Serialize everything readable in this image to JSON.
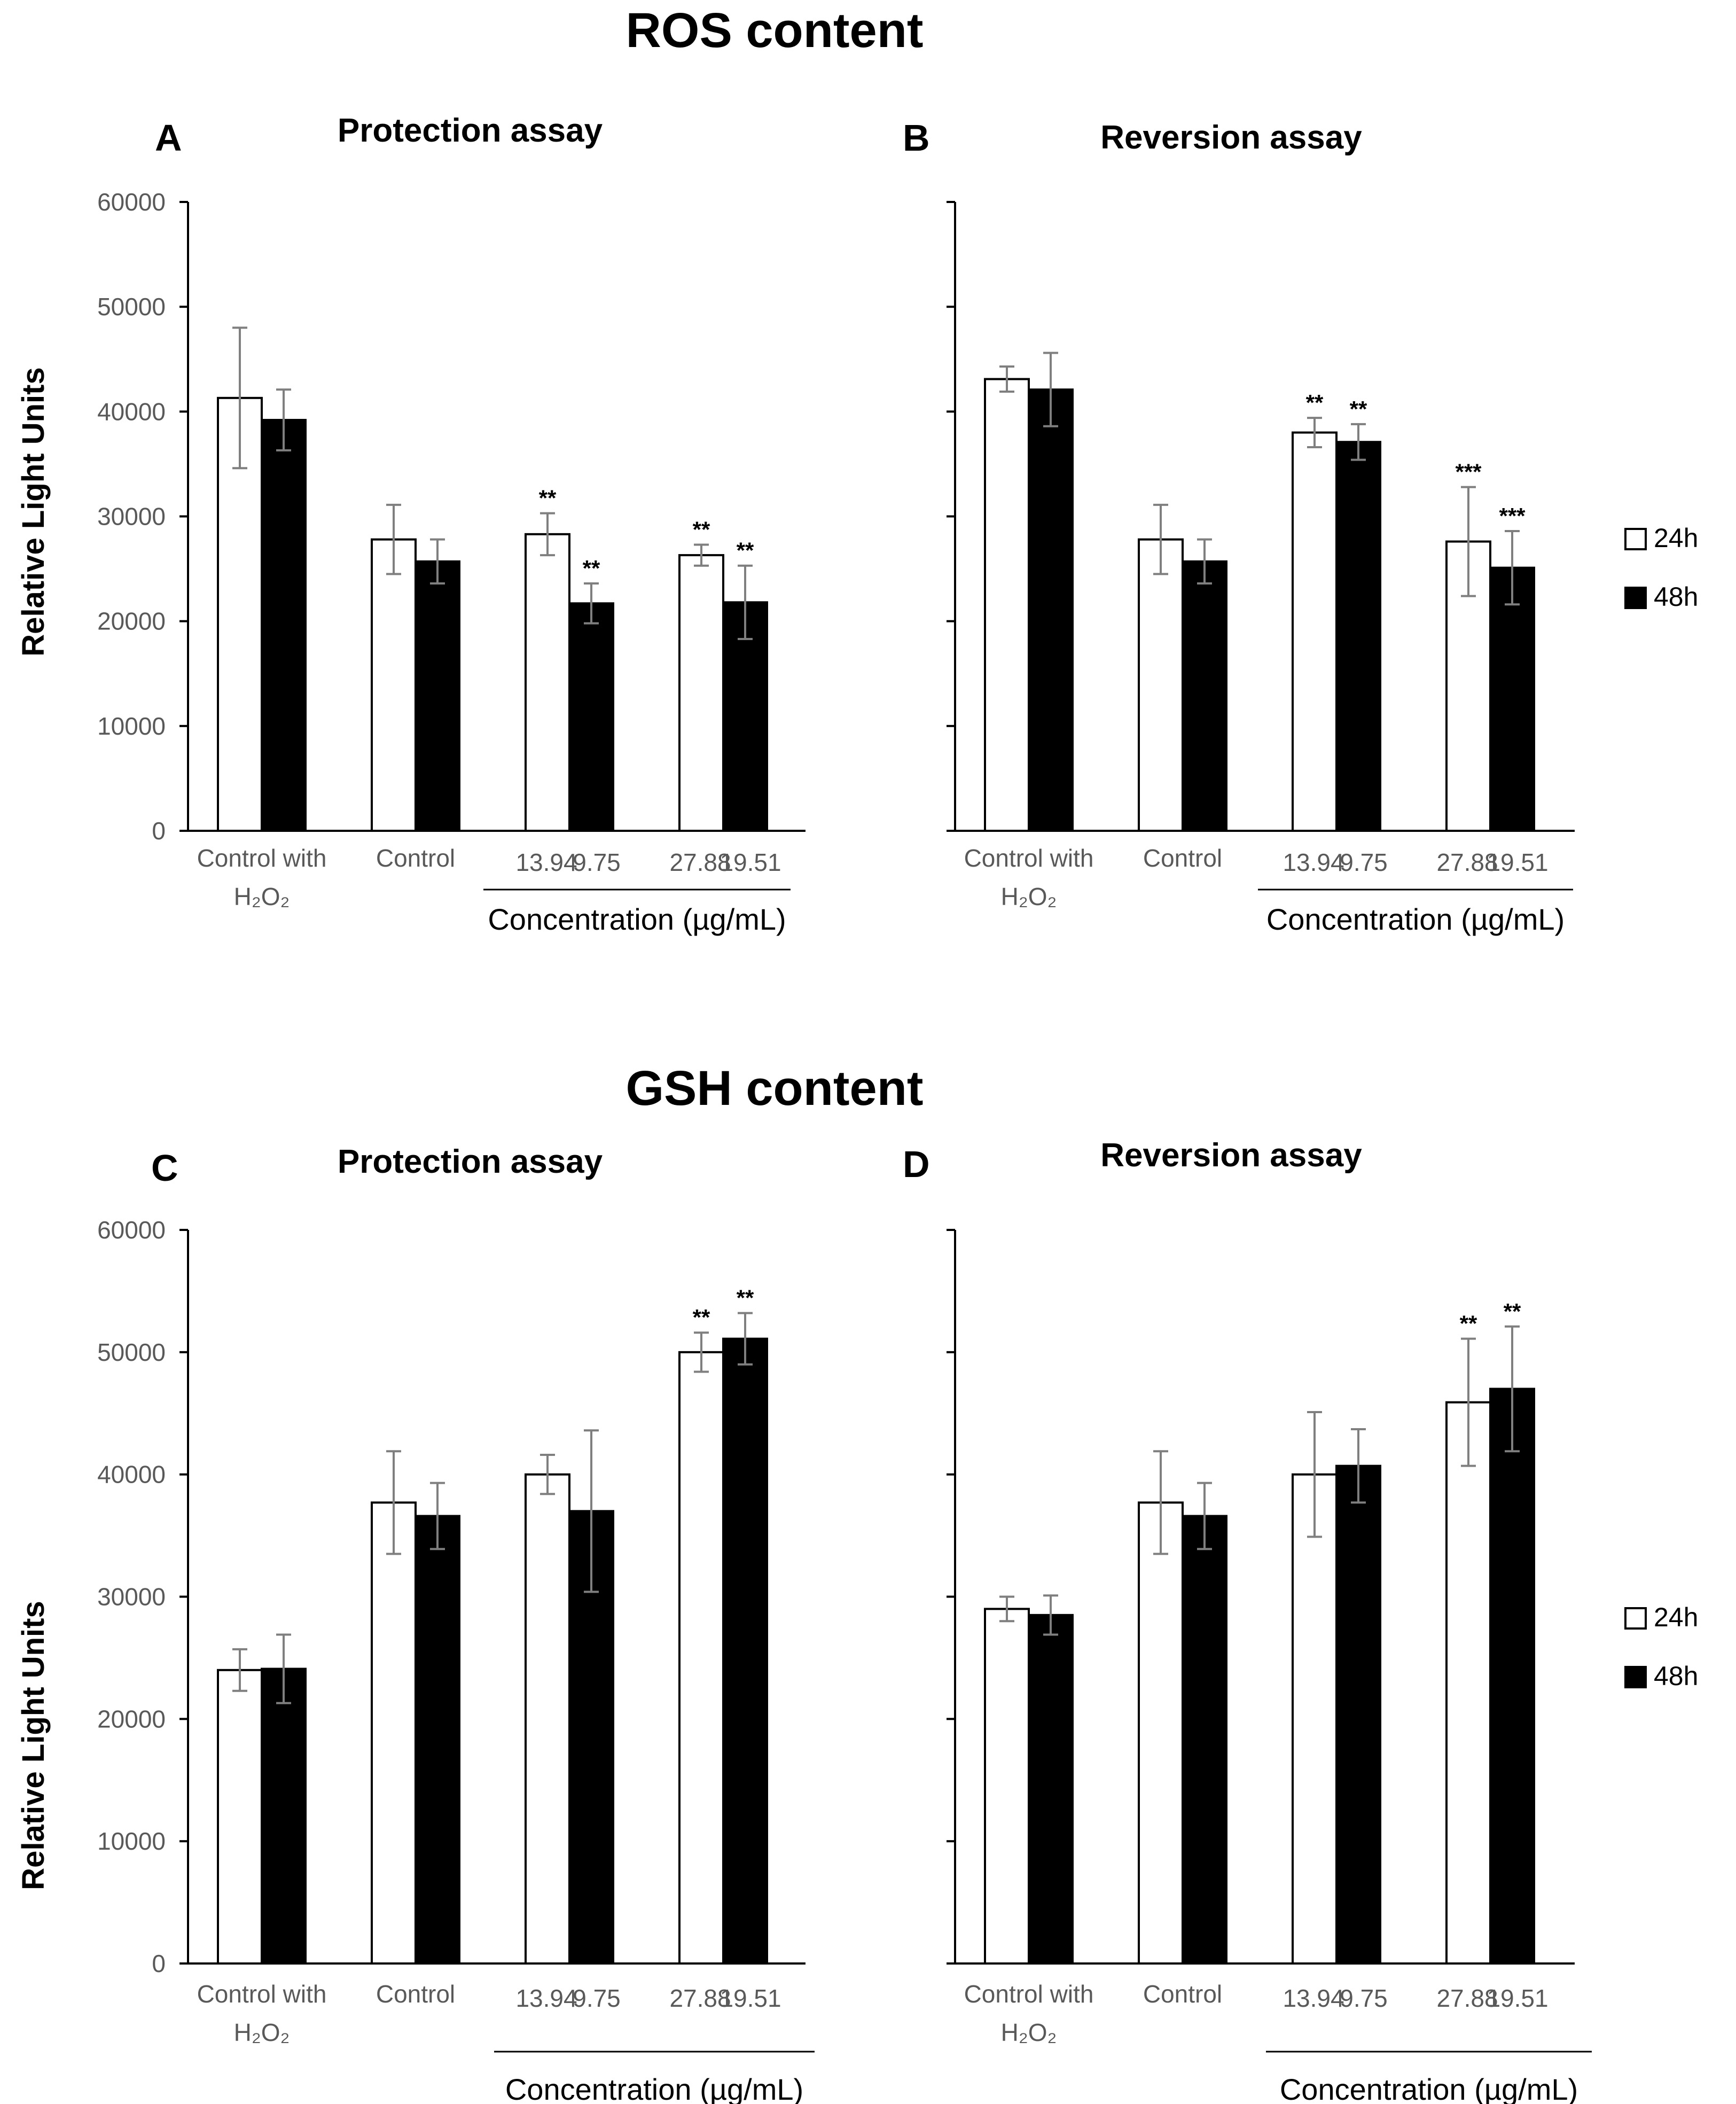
{
  "figure": {
    "sections": [
      {
        "title": "ROS content"
      },
      {
        "title": "GSH content"
      }
    ],
    "legend": [
      {
        "label": "24h",
        "color": "#ffffff"
      },
      {
        "label": "48h",
        "color": "#000000"
      }
    ]
  },
  "chart_data": [
    {
      "type": "bar",
      "panel": "A",
      "title": "Protection assay",
      "ylabel": "Relative Light Units",
      "xlabel": "Concentration (µg/mL)",
      "ylim": [
        0,
        60000
      ],
      "yticks": [
        "0",
        "10000",
        "20000",
        "30000",
        "40000",
        "50000",
        "60000"
      ],
      "groups": [
        {
          "label": "Control with H2O2",
          "label_main": "Control with",
          "label_sub": "H₂O₂"
        },
        {
          "label": "Control"
        },
        {
          "label_24h": "13.94",
          "label_48h": "9.75"
        },
        {
          "label_24h": "27.88",
          "label_48h": "19.51"
        }
      ],
      "series": [
        {
          "name": "24h",
          "values": [
            41300,
            27800,
            28300,
            26300
          ],
          "errors": [
            6700,
            3300,
            2000,
            1000
          ],
          "sig": [
            "",
            "",
            "**",
            "**"
          ]
        },
        {
          "name": "48h",
          "values": [
            39200,
            25700,
            21700,
            21800
          ],
          "errors": [
            2900,
            2100,
            1900,
            3500
          ],
          "sig": [
            "",
            "",
            "**",
            "**"
          ]
        }
      ]
    },
    {
      "type": "bar",
      "panel": "B",
      "title": "Reversion assay",
      "ylabel": "",
      "xlabel": "Concentration (µg/mL)",
      "ylim": [
        0,
        60000
      ],
      "yticks": [],
      "groups": [
        {
          "label": "Control with H2O2",
          "label_main": "Control with",
          "label_sub": "H₂O₂"
        },
        {
          "label": "Control"
        },
        {
          "label_24h": "13.94",
          "label_48h": "9.75"
        },
        {
          "label_24h": "27.88",
          "label_48h": "19.51"
        }
      ],
      "series": [
        {
          "name": "24h",
          "values": [
            43100,
            27800,
            38000,
            27600
          ],
          "errors": [
            1200,
            3300,
            1400,
            5200
          ],
          "sig": [
            "",
            "",
            "**",
            "***"
          ]
        },
        {
          "name": "48h",
          "values": [
            42100,
            25700,
            37100,
            25100
          ],
          "errors": [
            3500,
            2100,
            1700,
            3500
          ],
          "sig": [
            "",
            "",
            "**",
            "***"
          ]
        }
      ]
    },
    {
      "type": "bar",
      "panel": "C",
      "title": "Protection assay",
      "ylabel": "Relative Light Units",
      "xlabel": "Concentration (µg/mL)",
      "ylim": [
        0,
        60000
      ],
      "yticks": [
        "0",
        "10000",
        "20000",
        "30000",
        "40000",
        "50000",
        "60000"
      ],
      "groups": [
        {
          "label": "Control with H2O2",
          "label_main": "Control with",
          "label_sub": "H₂O₂"
        },
        {
          "label": "Control"
        },
        {
          "label_24h": "13.94",
          "label_48h": "9.75"
        },
        {
          "label_24h": "27.88",
          "label_48h": "19.51"
        }
      ],
      "series": [
        {
          "name": "24h",
          "values": [
            24000,
            37700,
            40000,
            50000
          ],
          "errors": [
            1700,
            4200,
            1600,
            1600
          ],
          "sig": [
            "",
            "",
            "",
            "**"
          ]
        },
        {
          "name": "48h",
          "values": [
            24100,
            36600,
            37000,
            51100
          ],
          "errors": [
            2800,
            2700,
            6600,
            2100
          ],
          "sig": [
            "",
            "",
            "",
            "**"
          ]
        }
      ]
    },
    {
      "type": "bar",
      "panel": "D",
      "title": "Reversion assay",
      "ylabel": "",
      "xlabel": "Concentration (µg/mL)",
      "ylim": [
        0,
        60000
      ],
      "yticks": [],
      "groups": [
        {
          "label": "Control with H2O2",
          "label_main": "Control with",
          "label_sub": "H₂O₂"
        },
        {
          "label": "Control"
        },
        {
          "label_24h": "13.94",
          "label_48h": "9.75"
        },
        {
          "label_24h": "27.88",
          "label_48h": "19.51"
        }
      ],
      "series": [
        {
          "name": "24h",
          "values": [
            29000,
            37700,
            40000,
            45900
          ],
          "errors": [
            1000,
            4200,
            5100,
            5200
          ],
          "sig": [
            "",
            "",
            "",
            "**"
          ]
        },
        {
          "name": "48h",
          "values": [
            28500,
            36600,
            40700,
            47000
          ],
          "errors": [
            1600,
            2700,
            3000,
            5100
          ],
          "sig": [
            "",
            "",
            "",
            "**"
          ]
        }
      ]
    }
  ]
}
